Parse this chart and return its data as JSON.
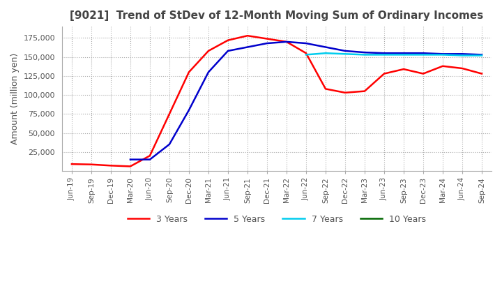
{
  "title": "[9021]  Trend of StDev of 12-Month Moving Sum of Ordinary Incomes",
  "ylabel": "Amount (million yen)",
  "ylim": [
    0,
    190000
  ],
  "yticks": [
    25000,
    50000,
    75000,
    100000,
    125000,
    150000,
    175000
  ],
  "line_colors": {
    "3y": "#ff0000",
    "5y": "#0000cc",
    "7y": "#00ccee",
    "10y": "#006600"
  },
  "legend_labels": [
    "3 Years",
    "5 Years",
    "7 Years",
    "10 Years"
  ],
  "background_color": "#ffffff",
  "x_labels": [
    "Jun-19",
    "Sep-19",
    "Dec-19",
    "Mar-20",
    "Jun-20",
    "Sep-20",
    "Dec-20",
    "Mar-21",
    "Jun-21",
    "Sep-21",
    "Dec-21",
    "Mar-22",
    "Jun-22",
    "Sep-22",
    "Dec-22",
    "Mar-23",
    "Jun-23",
    "Sep-23",
    "Dec-23",
    "Mar-24",
    "Jun-24",
    "Sep-24"
  ],
  "data_3y": [
    9000,
    8500,
    7000,
    6000,
    20000,
    75000,
    130000,
    158000,
    172000,
    178000,
    174000,
    170000,
    155000,
    108000,
    103000,
    105000,
    128000,
    134000,
    128000,
    138000,
    135000,
    128000
  ],
  "data_5y": [
    null,
    null,
    null,
    15000,
    15000,
    35000,
    80000,
    130000,
    158000,
    163000,
    168000,
    170000,
    168000,
    163000,
    158000,
    156000,
    155000,
    155000,
    155000,
    154000,
    154000,
    153000
  ],
  "data_7y": [
    null,
    null,
    null,
    null,
    null,
    null,
    null,
    null,
    null,
    null,
    null,
    null,
    153000,
    155000,
    154000,
    153000,
    153000,
    153000,
    153000,
    153000,
    152000,
    152000
  ],
  "data_10y": [
    null,
    null,
    null,
    null,
    null,
    null,
    null,
    null,
    null,
    null,
    null,
    null,
    null,
    null,
    null,
    null,
    null,
    null,
    null,
    null,
    null,
    null
  ]
}
